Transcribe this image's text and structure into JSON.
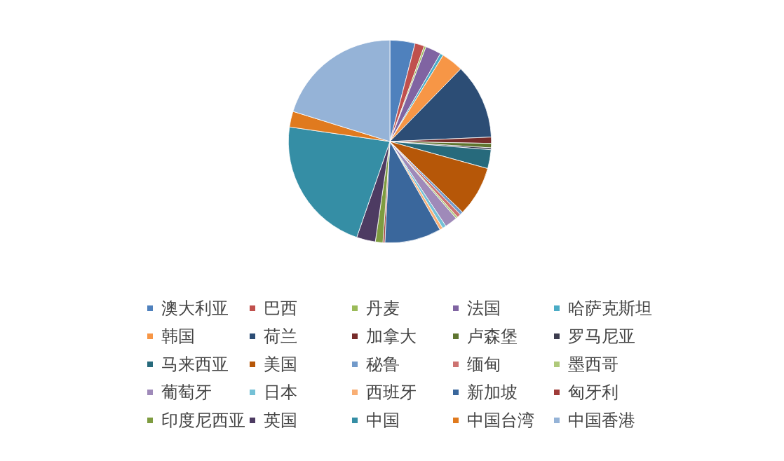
{
  "chart_data": {
    "type": "pie",
    "legend": "bottom",
    "categories": [
      "澳大利亚",
      "巴西",
      "丹麦",
      "法国",
      "哈萨克斯坦",
      "韩国",
      "荷兰",
      "加拿大",
      "卢森堡",
      "罗马尼亚",
      "马来西亚",
      "美国",
      "秘鲁",
      "缅甸",
      "墨西哥",
      "葡萄牙",
      "日本",
      "西班牙",
      "新加坡",
      "匈牙利",
      "印度尼西亚",
      "英国",
      "中国",
      "中国台湾",
      "中国香港"
    ],
    "values": [
      4,
      1.5,
      0.3,
      2.5,
      0.5,
      3.5,
      12,
      1,
      0.7,
      0.3,
      3,
      8,
      0.5,
      0.6,
      0.3,
      2,
      0.6,
      0.5,
      9,
      0.3,
      1.2,
      3,
      22,
      2.5,
      20.2
    ],
    "colors": [
      "#4f81bd",
      "#c0504d",
      "#9bbb59",
      "#8064a2",
      "#4bacc6",
      "#f79646",
      "#2c4d75",
      "#772c2a",
      "#5f7530",
      "#3c3c4e",
      "#276a7c",
      "#b65708",
      "#729aca",
      "#cd7371",
      "#afc97a",
      "#9f8ab9",
      "#75c1d6",
      "#f9af75",
      "#3a679c",
      "#9f3b38",
      "#7e9c40",
      "#4d3b62",
      "#358ea5",
      "#e07a1e",
      "#95b3d7"
    ]
  }
}
